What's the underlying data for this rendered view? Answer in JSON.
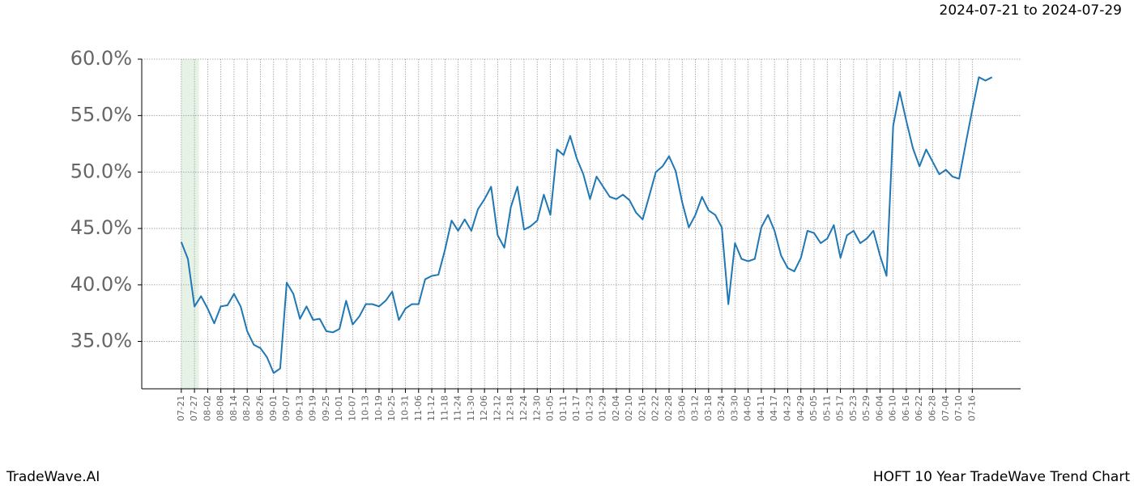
{
  "chart_data": {
    "type": "line",
    "date_range": "2024-07-21 to 2024-07-29",
    "brand": "TradeWave.AI",
    "title": "HOFT 10 Year TradeWave Trend Chart",
    "highlight": [
      0,
      8
    ],
    "highlight_color": "#d5ead5",
    "grid": true,
    "color": "#1f77b4",
    "xlim": [
      -18,
      382
    ],
    "ylim": [
      30.8,
      60
    ],
    "yticks": [
      {
        "value": 35,
        "label": "35.0%"
      },
      {
        "value": 40,
        "label": "40.0%"
      },
      {
        "value": 45,
        "label": "45.0%"
      },
      {
        "value": 50,
        "label": "50.0%"
      },
      {
        "value": 55,
        "label": "55.0%"
      },
      {
        "value": 60,
        "label": "60.0%"
      }
    ],
    "xticks": [
      {
        "value": 0,
        "label": "07-21"
      },
      {
        "value": 6,
        "label": "07-27"
      },
      {
        "value": 12,
        "label": "08-02"
      },
      {
        "value": 18,
        "label": "08-08"
      },
      {
        "value": 24,
        "label": "08-14"
      },
      {
        "value": 30,
        "label": "08-20"
      },
      {
        "value": 36,
        "label": "08-26"
      },
      {
        "value": 42,
        "label": "09-01"
      },
      {
        "value": 48,
        "label": "09-07"
      },
      {
        "value": 54,
        "label": "09-13"
      },
      {
        "value": 60,
        "label": "09-19"
      },
      {
        "value": 66,
        "label": "09-25"
      },
      {
        "value": 72,
        "label": "10-01"
      },
      {
        "value": 78,
        "label": "10-07"
      },
      {
        "value": 84,
        "label": "10-13"
      },
      {
        "value": 90,
        "label": "10-19"
      },
      {
        "value": 96,
        "label": "10-25"
      },
      {
        "value": 102,
        "label": "10-31"
      },
      {
        "value": 108,
        "label": "11-06"
      },
      {
        "value": 114,
        "label": "11-12"
      },
      {
        "value": 120,
        "label": "11-18"
      },
      {
        "value": 126,
        "label": "11-24"
      },
      {
        "value": 132,
        "label": "11-30"
      },
      {
        "value": 138,
        "label": "12-06"
      },
      {
        "value": 144,
        "label": "12-12"
      },
      {
        "value": 150,
        "label": "12-18"
      },
      {
        "value": 156,
        "label": "12-24"
      },
      {
        "value": 162,
        "label": "12-30"
      },
      {
        "value": 168,
        "label": "01-05"
      },
      {
        "value": 174,
        "label": "01-11"
      },
      {
        "value": 180,
        "label": "01-17"
      },
      {
        "value": 186,
        "label": "01-23"
      },
      {
        "value": 192,
        "label": "01-29"
      },
      {
        "value": 198,
        "label": "02-04"
      },
      {
        "value": 204,
        "label": "02-10"
      },
      {
        "value": 210,
        "label": "02-16"
      },
      {
        "value": 216,
        "label": "02-22"
      },
      {
        "value": 222,
        "label": "02-28"
      },
      {
        "value": 228,
        "label": "03-06"
      },
      {
        "value": 234,
        "label": "03-12"
      },
      {
        "value": 240,
        "label": "03-18"
      },
      {
        "value": 246,
        "label": "03-24"
      },
      {
        "value": 252,
        "label": "03-30"
      },
      {
        "value": 258,
        "label": "04-05"
      },
      {
        "value": 264,
        "label": "04-11"
      },
      {
        "value": 270,
        "label": "04-17"
      },
      {
        "value": 276,
        "label": "04-23"
      },
      {
        "value": 282,
        "label": "04-29"
      },
      {
        "value": 288,
        "label": "05-05"
      },
      {
        "value": 294,
        "label": "05-11"
      },
      {
        "value": 300,
        "label": "05-17"
      },
      {
        "value": 306,
        "label": "05-23"
      },
      {
        "value": 312,
        "label": "05-29"
      },
      {
        "value": 318,
        "label": "06-04"
      },
      {
        "value": 324,
        "label": "06-10"
      },
      {
        "value": 330,
        "label": "06-16"
      },
      {
        "value": 336,
        "label": "06-22"
      },
      {
        "value": 342,
        "label": "06-28"
      },
      {
        "value": 348,
        "label": "07-04"
      },
      {
        "value": 354,
        "label": "07-10"
      },
      {
        "value": 360,
        "label": "07-16"
      }
    ],
    "x": [
      0,
      3,
      6,
      9,
      12,
      15,
      18,
      21,
      24,
      27,
      30,
      33,
      36,
      39,
      42,
      45,
      48,
      51,
      54,
      57,
      60,
      63,
      66,
      69,
      72,
      75,
      78,
      81,
      84,
      87,
      90,
      93,
      96,
      99,
      102,
      105,
      108,
      111,
      114,
      117,
      120,
      123,
      126,
      129,
      132,
      135,
      138,
      141,
      144,
      147,
      150,
      153,
      156,
      159,
      162,
      165,
      168,
      171,
      174,
      177,
      180,
      183,
      186,
      189,
      192,
      195,
      198,
      201,
      204,
      207,
      210,
      213,
      216,
      219,
      222,
      225,
      228,
      231,
      234,
      237,
      240,
      243,
      246,
      249,
      252,
      255,
      258,
      261,
      264,
      267,
      270,
      273,
      276,
      279,
      282,
      285,
      288,
      291,
      294,
      297,
      300,
      303,
      306,
      309,
      312,
      315,
      318,
      321,
      324,
      327,
      330,
      333,
      336,
      339,
      342,
      345,
      348,
      351,
      354,
      357,
      360,
      363,
      366,
      369
    ],
    "values": [
      43.8,
      42.3,
      38.1,
      39,
      37.9,
      36.6,
      38.1,
      38.2,
      39.2,
      38.1,
      35.9,
      34.7,
      34.4,
      33.6,
      32.2,
      32.6,
      40.2,
      39.2,
      37,
      38.1,
      36.9,
      37,
      35.9,
      35.8,
      36.1,
      38.6,
      36.5,
      37.2,
      38.3,
      38.3,
      38.1,
      38.6,
      39.4,
      36.9,
      37.9,
      38.3,
      38.3,
      40.5,
      40.8,
      40.9,
      43.1,
      45.7,
      44.8,
      45.8,
      44.8,
      46.7,
      47.6,
      48.7,
      44.4,
      43.3,
      46.9,
      48.7,
      44.9,
      45.2,
      45.7,
      48,
      46.2,
      52,
      51.5,
      53.2,
      51.2,
      49.8,
      47.6,
      49.6,
      48.7,
      47.8,
      47.6,
      48,
      47.5,
      46.4,
      45.8,
      47.9,
      50,
      50.5,
      51.4,
      50.1,
      47.3,
      45.1,
      46.2,
      47.8,
      46.6,
      46.2,
      45.1,
      38.3,
      43.7,
      42.3,
      42.1,
      42.3,
      45.1,
      46.2,
      44.8,
      42.6,
      41.5,
      41.2,
      42.4,
      44.8,
      44.6,
      43.7,
      44.1,
      45.3,
      42.4,
      44.4,
      44.8,
      43.7,
      44.1,
      44.8,
      42.6,
      40.8,
      54.1,
      57.1,
      54.5,
      52.1,
      50.5,
      52,
      50.9,
      49.8,
      50.2,
      49.6,
      49.4,
      52.5,
      55.5,
      58.4,
      58.1,
      58.4
    ]
  }
}
